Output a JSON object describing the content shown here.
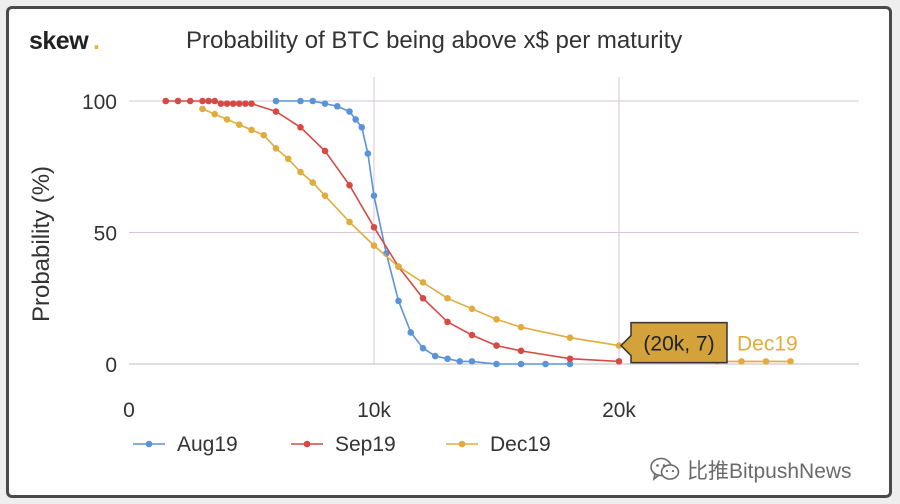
{
  "header": {
    "logo": "skew",
    "logo_dot": ".",
    "title": "Probability of BTC being above x$ per maturity"
  },
  "watermark": {
    "text": "比推BitpushNews",
    "icon": "wechat-icon"
  },
  "chart_data": {
    "type": "line",
    "title": "Probability of BTC being above x$ per maturity",
    "xlabel": "",
    "ylabel": "Probability (%)",
    "xlim": [
      0,
      27500
    ],
    "ylim": [
      0,
      100
    ],
    "xticks": [
      0,
      10000,
      20000
    ],
    "xtick_labels": [
      "0",
      "10k",
      "20k"
    ],
    "yticks": [
      0,
      50,
      100
    ],
    "ytick_labels": [
      "0",
      "50",
      "100"
    ],
    "grid": true,
    "legend": "bottom",
    "series": [
      {
        "name": "Aug19",
        "color": "#5b93d8",
        "x": [
          6000,
          7000,
          7500,
          8000,
          8500,
          9000,
          9250,
          9500,
          9750,
          10000,
          10500,
          11000,
          11500,
          12000,
          12500,
          13000,
          13500,
          14000,
          15000,
          16000,
          17000,
          18000
        ],
        "y": [
          100,
          100,
          100,
          99,
          98,
          96,
          93,
          90,
          80,
          64,
          42,
          24,
          12,
          6,
          3,
          2,
          1,
          1,
          0,
          0,
          0,
          0
        ]
      },
      {
        "name": "Sep19",
        "color": "#d64a44",
        "x": [
          1500,
          2000,
          2500,
          3000,
          3250,
          3500,
          3750,
          4000,
          4250,
          4500,
          4750,
          5000,
          6000,
          7000,
          8000,
          9000,
          10000,
          11000,
          12000,
          13000,
          14000,
          15000,
          16000,
          18000,
          20000
        ],
        "y": [
          100,
          100,
          100,
          100,
          100,
          100,
          99,
          99,
          99,
          99,
          99,
          99,
          96,
          90,
          81,
          68,
          52,
          37,
          25,
          16,
          11,
          7,
          5,
          2,
          1
        ]
      },
      {
        "name": "Dec19",
        "color": "#e0ac3e",
        "x": [
          3000,
          3500,
          4000,
          4500,
          5000,
          5500,
          6000,
          6500,
          7000,
          7500,
          8000,
          9000,
          10000,
          11000,
          12000,
          13000,
          14000,
          15000,
          16000,
          18000,
          20000,
          22000,
          23000,
          24000,
          25000,
          26000,
          27000
        ],
        "y": [
          97,
          95,
          93,
          91,
          89,
          87,
          82,
          78,
          73,
          69,
          64,
          54,
          45,
          37,
          31,
          25,
          21,
          17,
          14,
          10,
          7,
          5,
          3,
          1,
          1,
          1,
          1
        ]
      }
    ],
    "tooltip": {
      "label": "(20k, 7)",
      "series": "Dec19"
    }
  }
}
